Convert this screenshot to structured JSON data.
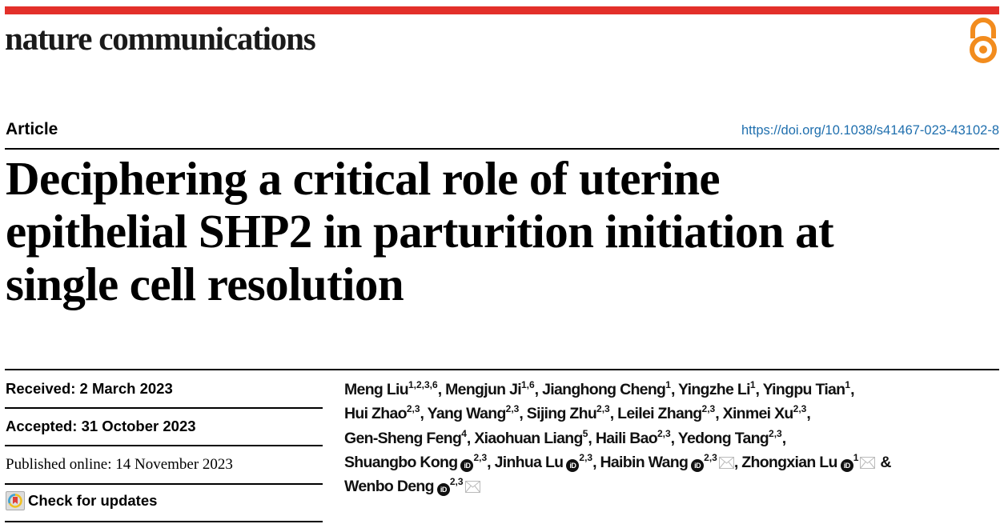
{
  "header": {
    "journal": "nature communications",
    "accent_color": "#e3302a",
    "open_access_icon": "open-access-lock-icon",
    "open_access_color": "#f28c1e"
  },
  "article_type": "Article",
  "doi": "https://doi.org/10.1038/s41467-023-43102-8",
  "title_lines": [
    "Deciphering a critical role of uterine",
    "epithelial SHP2 in parturition initiation at",
    "single cell resolution"
  ],
  "dates": {
    "received": "Received: 2 March 2023",
    "accepted": "Accepted: 31 October 2023",
    "published": "Published online: 14 November 2023"
  },
  "check_updates": "Check for updates",
  "authors": [
    {
      "name": "Meng Liu",
      "aff": "1,2,3,6"
    },
    {
      "name": "Mengjun Ji",
      "aff": "1,6"
    },
    {
      "name": "Jianghong Cheng",
      "aff": "1"
    },
    {
      "name": "Yingzhe Li",
      "aff": "1"
    },
    {
      "name": "Yingpu Tian",
      "aff": "1"
    },
    {
      "name": "Hui Zhao",
      "aff": "2,3"
    },
    {
      "name": "Yang Wang",
      "aff": "2,3"
    },
    {
      "name": "Sijing Zhu",
      "aff": "2,3"
    },
    {
      "name": "Leilei Zhang",
      "aff": "2,3"
    },
    {
      "name": "Xinmei Xu",
      "aff": "2,3"
    },
    {
      "name": "Gen-Sheng Feng",
      "aff": "4"
    },
    {
      "name": "Xiaohuan Liang",
      "aff": "5"
    },
    {
      "name": "Haili Bao",
      "aff": "2,3"
    },
    {
      "name": "Yedong Tang",
      "aff": "2,3"
    },
    {
      "name": "Shuangbo Kong",
      "aff": "2,3",
      "orcid": true
    },
    {
      "name": "Jinhua Lu",
      "aff": "2,3",
      "orcid": true
    },
    {
      "name": "Haibin Wang",
      "aff": "2,3",
      "orcid": true,
      "email": true
    },
    {
      "name": "Zhongxian Lu",
      "aff": "1",
      "orcid": true,
      "email": true
    },
    {
      "name": "Wenbo Deng",
      "aff": "2,3",
      "orcid": true,
      "email": true
    }
  ],
  "author_lines": [
    [
      0,
      1,
      2,
      3,
      4
    ],
    [
      5,
      6,
      7,
      8,
      9
    ],
    [
      10,
      11,
      12,
      13
    ],
    [
      14,
      15,
      16,
      17
    ],
    [
      18
    ]
  ],
  "orcid_label": "iD",
  "ampersand": "&"
}
